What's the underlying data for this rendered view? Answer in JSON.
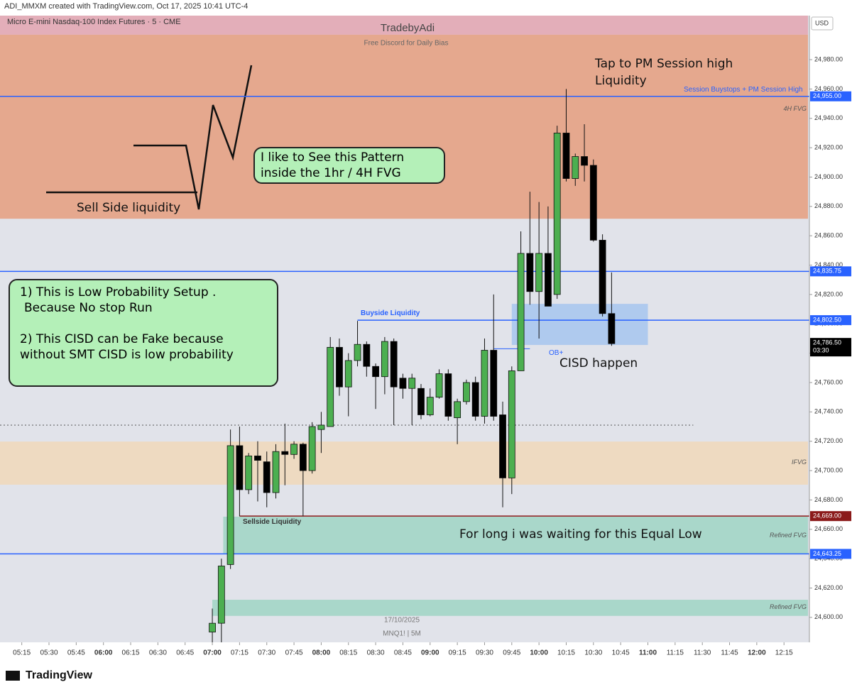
{
  "header": {
    "credit": "ADI_MMXM created with TradingView.com, Oct 17, 2025 10:41 UTC-4",
    "symbol": "Micro E-mini Nasdaq-100 Index Futures · 5 · CME",
    "currency": "USD"
  },
  "footer": {
    "brand": "TradingView"
  },
  "watermark": {
    "title": "TradebyAdi",
    "subtitle": "Free Discord for Daily Bias",
    "date": "17/10/2025",
    "ticker": "MNQ1! | 5M"
  },
  "annotations": {
    "tap": "Tap to PM Session high Liquidity",
    "session_high": "Session Buystops + PM Session High",
    "pattern": "I like to See this Pattern inside the 1hr / 4H FVG",
    "sell_side": "Sell Side liquidity",
    "note_lines": [
      "1) This is Low Probability Setup .",
      "Because No stop Run",
      "2) This CISD can be Fake because",
      "without SMT CISD is low probability"
    ],
    "buyside": "Buyside Liquidity",
    "ob": "OB+",
    "cisd": "CISD happen",
    "sellside": "Sellside Liquidity",
    "equal_low": "For long i was waiting for this Equal Low"
  },
  "chart_data": {
    "type": "candlestick",
    "up_color": "#4caf50",
    "down_color": "#000000",
    "x": [
      "07:00",
      "07:05",
      "07:10",
      "07:15",
      "07:20",
      "07:25",
      "07:30",
      "07:35",
      "07:40",
      "07:45",
      "07:50",
      "07:55",
      "08:00",
      "08:05",
      "08:10",
      "08:15",
      "08:20",
      "08:25",
      "08:30",
      "08:35",
      "08:40",
      "08:45",
      "08:50",
      "08:55",
      "09:00",
      "09:05",
      "09:10",
      "09:15",
      "09:20",
      "09:25",
      "09:30",
      "09:35",
      "09:40",
      "09:45",
      "09:50",
      "09:55",
      "10:00",
      "10:05",
      "10:10",
      "10:15",
      "10:20",
      "10:25",
      "10:30",
      "10:35",
      "10:40"
    ],
    "open": [
      24590,
      24596,
      24636,
      24717,
      24687,
      24710,
      24706,
      24685,
      24713,
      24711,
      24718,
      24700,
      24728,
      24730,
      24784,
      24757,
      24775,
      24786,
      24771,
      24764,
      24788,
      24763,
      24756,
      24756,
      24738,
      24750,
      24766,
      24736,
      24747,
      24760,
      24737,
      24782,
      24738,
      24695,
      24768,
      24848,
      24822,
      24848,
      24820,
      24930,
      24899,
      24914,
      24908,
      24857,
      24807
    ],
    "high": [
      24606,
      24640,
      24728,
      24730,
      24712,
      24720,
      24713,
      24718,
      24732,
      24720,
      24719,
      24733,
      24740,
      24791,
      24790,
      24780,
      24802,
      24788,
      24773,
      24791,
      24790,
      24766,
      24766,
      24759,
      24756,
      24769,
      24769,
      24749,
      24762,
      24764,
      24790,
      24820,
      24747,
      24771,
      24863,
      24890,
      24883,
      24880,
      24935,
      24960,
      24916,
      24936,
      24912,
      24861,
      24835
    ],
    "low": [
      24583,
      24583,
      24633,
      24669,
      24684,
      24679,
      24675,
      24681,
      24690,
      24708,
      24669,
      24698,
      24712,
      24730,
      24751,
      24737,
      24771,
      24764,
      24742,
      24752,
      24731,
      24749,
      24731,
      24735,
      24737,
      24749,
      24734,
      24718,
      24745,
      24734,
      24732,
      24734,
      24675,
      24684,
      24768,
      24813,
      24790,
      24813,
      24817,
      24897,
      24894,
      24897,
      24856,
      24805,
      24785
    ],
    "close": [
      24596,
      24635,
      24717,
      24687,
      24710,
      24707,
      24685,
      24713,
      24711,
      24718,
      24700,
      24730,
      24731,
      24784,
      24757,
      24775,
      24786,
      24771,
      24764,
      24788,
      24757,
      24756,
      24763,
      24738,
      24750,
      24766,
      24737,
      24747,
      24760,
      24737,
      24782,
      24737,
      24695,
      24768,
      24848,
      24822,
      24848,
      24812,
      24930,
      24899,
      24914,
      24908,
      24857,
      24807,
      24786.5
    ],
    "ylim": [
      24583,
      25010
    ],
    "yticks": [
      {
        "value": 24600,
        "label": "24,600.00"
      },
      {
        "value": 24620,
        "label": "24,620.00"
      },
      {
        "value": 24640,
        "label": "24,640.00"
      },
      {
        "value": 24660,
        "label": "24,660.00"
      },
      {
        "value": 24680,
        "label": "24,680.00"
      },
      {
        "value": 24700,
        "label": "24,700.00"
      },
      {
        "value": 24720,
        "label": "24,720.00"
      },
      {
        "value": 24740,
        "label": "24,740.00"
      },
      {
        "value": 24760,
        "label": "24,760.00"
      },
      {
        "value": 24780,
        "label": "24,780.00"
      },
      {
        "value": 24800,
        "label": "24,800.00"
      },
      {
        "value": 24820,
        "label": "24,820.00"
      },
      {
        "value": 24840,
        "label": "24,840.00"
      },
      {
        "value": 24860,
        "label": "24,860.00"
      },
      {
        "value": 24880,
        "label": "24,880.00"
      },
      {
        "value": 24900,
        "label": "24,900.00"
      },
      {
        "value": 24920,
        "label": "24,920.00"
      },
      {
        "value": 24940,
        "label": "24,940.00"
      },
      {
        "value": 24960,
        "label": "24,960.00"
      },
      {
        "value": 24980,
        "label": "24,980.00"
      }
    ],
    "xlim": [
      "05:03",
      "12:29"
    ],
    "xticks": [
      "05:15",
      "05:30",
      "05:45",
      "06:00",
      "06:15",
      "06:30",
      "06:45",
      "07:00",
      "07:15",
      "07:30",
      "07:45",
      "08:00",
      "08:15",
      "08:30",
      "08:45",
      "09:00",
      "09:15",
      "09:30",
      "09:45",
      "10:00",
      "10:15",
      "10:30",
      "10:45",
      "11:00",
      "11:15",
      "11:30",
      "11:45",
      "12:00",
      "12:15"
    ],
    "zones": [
      {
        "low": 24997,
        "high": 25010,
        "color": "#e3a7b4"
      },
      {
        "low": 24871.6,
        "high": 24997,
        "color": "#e6a184",
        "label": "4H FVG"
      },
      {
        "low": 24690.4,
        "high": 24719.8,
        "color": "#efd8bc",
        "label": "IFVG"
      },
      {
        "low": 24643.5,
        "high": 24668.6,
        "color": "#a3d5c6",
        "from": "07:06",
        "label": "Refined FVG"
      },
      {
        "low": 24601,
        "high": 24612,
        "color": "#a3d5c6",
        "from": "07:00",
        "label": "Refined FVG"
      },
      {
        "low": 24785.6,
        "high": 24813.6,
        "color": "#aac6ee",
        "from": "09:45",
        "to": "11:00"
      }
    ],
    "levels": [
      {
        "value": 24955,
        "label": "24,955.00",
        "color": "#2962ff"
      },
      {
        "value": 24835.75,
        "label": "24,835.75",
        "color": "#2962ff"
      },
      {
        "value": 24802.5,
        "label": "24,802.50",
        "color": "#2962ff",
        "from": "08:20"
      },
      {
        "value": 24669,
        "label": "24,669.00",
        "color": "#8b1a1a",
        "from": "07:15"
      },
      {
        "value": 24643.25,
        "label": "24,643.25",
        "color": "#2962ff"
      }
    ],
    "lines": [
      {
        "value": 24783,
        "from": "09:35",
        "to": "09:55",
        "color": "#2962ff"
      },
      {
        "value": 24731,
        "to": "11:25",
        "color": "#555555",
        "dash": "2 3"
      }
    ],
    "last_price": {
      "value": 24786.5,
      "label": "24,786.50",
      "countdown": "03:30"
    }
  }
}
